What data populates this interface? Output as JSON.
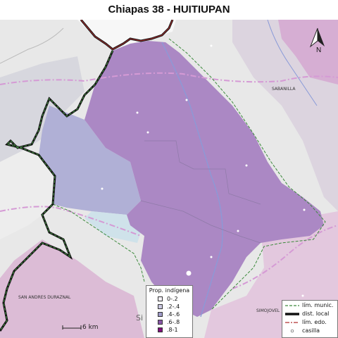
{
  "title": "Chiapas 38 - HUITIUPAN",
  "north": {
    "label": "N"
  },
  "scale": {
    "label": "6 km"
  },
  "places": {
    "sabanilla": "SABANILLA",
    "san_andres": "SAN ANDRES DURAZNAL",
    "simojovel": "SIMOJOVEL",
    "partial_si": "Si"
  },
  "legend_prop": {
    "title": "Prop. indígena",
    "items": [
      {
        "label": "0-.2",
        "color": "#f4f0f7"
      },
      {
        "label": ".2-.4",
        "color": "#cbc9e2"
      },
      {
        "label": ".4-.6",
        "color": "#9e9ac8"
      },
      {
        "label": ".6-.8",
        "color": "#8856a7"
      },
      {
        "label": ".8-1",
        "color": "#810f7c"
      }
    ]
  },
  "legend_lines": {
    "items": [
      {
        "label": "lím. munic.",
        "icon": "dashed-green-line"
      },
      {
        "label": "dist. local",
        "icon": "thick-black-line"
      },
      {
        "label": "lím. edo.",
        "icon": "red-line"
      },
      {
        "label": "casilla",
        "icon": "small-circle"
      }
    ]
  },
  "colors": {
    "district_fill": "#ab88c4",
    "west_fill": "#b0b0d6",
    "light_fill": "#cfe2ea",
    "outer_light": "#e9e9e9",
    "outer_pink": "#dcbcd6",
    "road": "#d59ad5",
    "river": "#8a9ad8"
  }
}
